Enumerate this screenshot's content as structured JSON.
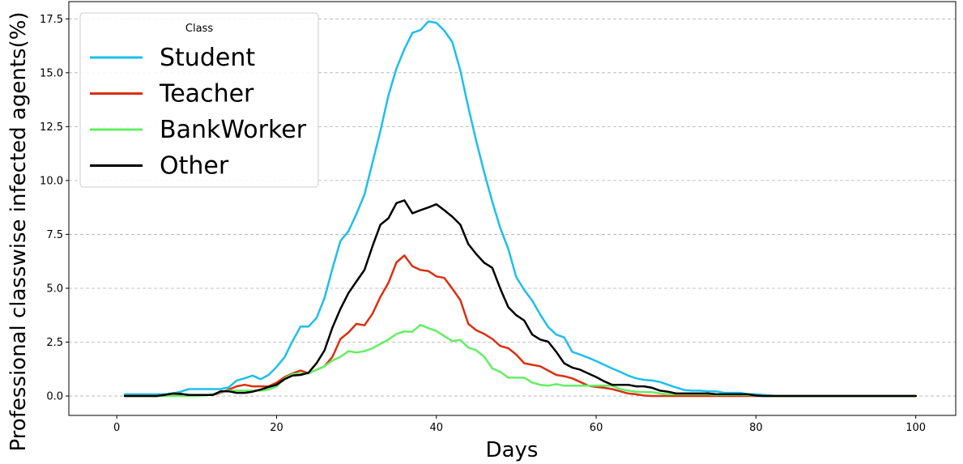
{
  "chart_data": {
    "type": "line",
    "xlabel": "Days",
    "ylabel": "Professional classwise infected agents(%)",
    "xlim": [
      -6,
      105
    ],
    "ylim": [
      -0.9,
      18.3
    ],
    "xticks": [
      0,
      20,
      40,
      60,
      80,
      100
    ],
    "yticks": [
      0.0,
      2.5,
      5.0,
      7.5,
      10.0,
      12.5,
      15.0,
      17.5
    ],
    "xtick_labels": [
      "0",
      "20",
      "40",
      "60",
      "80",
      "100"
    ],
    "ytick_labels": [
      "0.0",
      "2.5",
      "5.0",
      "7.5",
      "10.0",
      "12.5",
      "15.0",
      "17.5"
    ],
    "grid": "horizontal dashed",
    "legend": {
      "title": "Class",
      "placement": "top-left"
    },
    "x": [
      1,
      2,
      3,
      4,
      5,
      6,
      7,
      8,
      9,
      10,
      11,
      12,
      13,
      14,
      15,
      16,
      17,
      18,
      19,
      20,
      21,
      22,
      23,
      24,
      25,
      26,
      27,
      28,
      29,
      30,
      31,
      32,
      33,
      34,
      35,
      36,
      37,
      38,
      39,
      40,
      41,
      42,
      43,
      44,
      45,
      46,
      47,
      48,
      49,
      50,
      51,
      52,
      53,
      54,
      55,
      56,
      57,
      58,
      59,
      60,
      61,
      62,
      63,
      64,
      65,
      66,
      67,
      68,
      69,
      70,
      71,
      72,
      73,
      74,
      75,
      76,
      77,
      78,
      79,
      80,
      81,
      82,
      83,
      84,
      85,
      86,
      87,
      88,
      89,
      90,
      91,
      92,
      93,
      94,
      95,
      96,
      97,
      98,
      99,
      100
    ],
    "series": [
      {
        "name": "Student",
        "color": "#1EBEED",
        "values": [
          0.08,
          0.08,
          0.08,
          0.08,
          0.08,
          0.08,
          0.12,
          0.2,
          0.32,
          0.32,
          0.32,
          0.32,
          0.32,
          0.4,
          0.72,
          0.82,
          0.95,
          0.78,
          0.98,
          1.35,
          1.8,
          2.55,
          3.22,
          3.22,
          3.62,
          4.55,
          5.92,
          7.2,
          7.65,
          8.45,
          9.35,
          10.82,
          12.3,
          13.95,
          15.2,
          16.1,
          16.85,
          16.98,
          17.38,
          17.32,
          16.95,
          16.42,
          15.1,
          13.4,
          11.82,
          10.35,
          9.02,
          7.8,
          6.82,
          5.52,
          4.92,
          4.42,
          3.78,
          3.2,
          2.85,
          2.72,
          2.05,
          1.92,
          1.78,
          1.62,
          1.45,
          1.28,
          1.12,
          0.95,
          0.82,
          0.75,
          0.72,
          0.65,
          0.52,
          0.4,
          0.28,
          0.25,
          0.25,
          0.22,
          0.22,
          0.15,
          0.15,
          0.15,
          0.08,
          0.08,
          0.05,
          0.02,
          0.0,
          0.0,
          0.0,
          0.0,
          0.0,
          0.0,
          0.0,
          0.0,
          0.0,
          0.0,
          0.0,
          0.0,
          0.0,
          0.0,
          0.0,
          0.0,
          0.0,
          0.0
        ]
      },
      {
        "name": "Teacher",
        "color": "#D9300F",
        "values": [
          0.0,
          0.0,
          0.0,
          0.0,
          0.0,
          0.05,
          0.1,
          0.08,
          0.05,
          0.05,
          0.05,
          0.05,
          0.15,
          0.3,
          0.45,
          0.52,
          0.45,
          0.45,
          0.45,
          0.62,
          0.88,
          1.05,
          1.18,
          1.05,
          1.22,
          1.38,
          1.82,
          2.65,
          2.95,
          3.35,
          3.28,
          3.82,
          4.6,
          5.25,
          6.2,
          6.52,
          6.02,
          5.85,
          5.8,
          5.55,
          5.48,
          4.98,
          4.45,
          3.35,
          3.05,
          2.88,
          2.65,
          2.32,
          2.22,
          1.92,
          1.52,
          1.45,
          1.38,
          1.18,
          0.98,
          0.92,
          0.82,
          0.65,
          0.48,
          0.42,
          0.38,
          0.32,
          0.22,
          0.12,
          0.08,
          0.02,
          0.0,
          0.0,
          0.0,
          0.0,
          0.0,
          0.0,
          0.0,
          0.0,
          0.0,
          0.0,
          0.0,
          0.0,
          0.0,
          0.0,
          0.0,
          0.0,
          0.0,
          0.0,
          0.0,
          0.0,
          0.0,
          0.0,
          0.0,
          0.0,
          0.0,
          0.0,
          0.0,
          0.0,
          0.0,
          0.0,
          0.0,
          0.0,
          0.0,
          0.0
        ]
      },
      {
        "name": "BankWorker",
        "color": "#62F062",
        "values": [
          0.0,
          0.0,
          0.0,
          0.0,
          0.0,
          0.0,
          0.0,
          0.0,
          0.0,
          0.0,
          0.02,
          0.08,
          0.18,
          0.25,
          0.25,
          0.25,
          0.25,
          0.25,
          0.3,
          0.45,
          0.82,
          1.02,
          1.05,
          1.05,
          1.22,
          1.38,
          1.65,
          1.82,
          2.08,
          2.02,
          2.08,
          2.22,
          2.42,
          2.62,
          2.88,
          3.0,
          2.98,
          3.3,
          3.15,
          3.02,
          2.78,
          2.55,
          2.6,
          2.25,
          2.12,
          1.82,
          1.28,
          1.12,
          0.85,
          0.85,
          0.85,
          0.62,
          0.52,
          0.48,
          0.55,
          0.48,
          0.48,
          0.48,
          0.48,
          0.48,
          0.48,
          0.48,
          0.32,
          0.25,
          0.2,
          0.18,
          0.18,
          0.12,
          0.08,
          0.08,
          0.08,
          0.08,
          0.08,
          0.08,
          0.05,
          0.05,
          0.05,
          0.05,
          0.05,
          0.02,
          0.0,
          0.0,
          0.0,
          0.0,
          0.0,
          0.0,
          0.0,
          0.0,
          0.0,
          0.0,
          0.0,
          0.0,
          0.0,
          0.0,
          0.0,
          0.0,
          0.0,
          0.0,
          0.0,
          0.0
        ]
      },
      {
        "name": "Other",
        "color": "#000000",
        "values": [
          0.0,
          0.0,
          0.0,
          0.0,
          0.0,
          0.05,
          0.12,
          0.1,
          0.05,
          0.05,
          0.05,
          0.05,
          0.22,
          0.22,
          0.15,
          0.15,
          0.2,
          0.3,
          0.42,
          0.52,
          0.78,
          0.95,
          0.98,
          1.08,
          1.52,
          2.12,
          3.18,
          4.05,
          4.78,
          5.32,
          5.85,
          6.95,
          7.95,
          8.25,
          8.95,
          9.08,
          8.48,
          8.62,
          8.75,
          8.9,
          8.62,
          8.32,
          7.95,
          7.05,
          6.58,
          6.18,
          5.95,
          4.98,
          4.12,
          3.75,
          3.5,
          2.85,
          2.62,
          2.52,
          2.05,
          1.52,
          1.32,
          1.22,
          1.05,
          0.88,
          0.68,
          0.52,
          0.52,
          0.52,
          0.45,
          0.45,
          0.38,
          0.25,
          0.2,
          0.12,
          0.12,
          0.12,
          0.12,
          0.12,
          0.08,
          0.08,
          0.08,
          0.08,
          0.08,
          0.02,
          0.0,
          0.0,
          0.0,
          0.0,
          0.0,
          0.0,
          0.0,
          0.0,
          0.0,
          0.0,
          0.0,
          0.0,
          0.0,
          0.0,
          0.0,
          0.0,
          0.0,
          0.0,
          0.0,
          0.0
        ]
      }
    ]
  }
}
